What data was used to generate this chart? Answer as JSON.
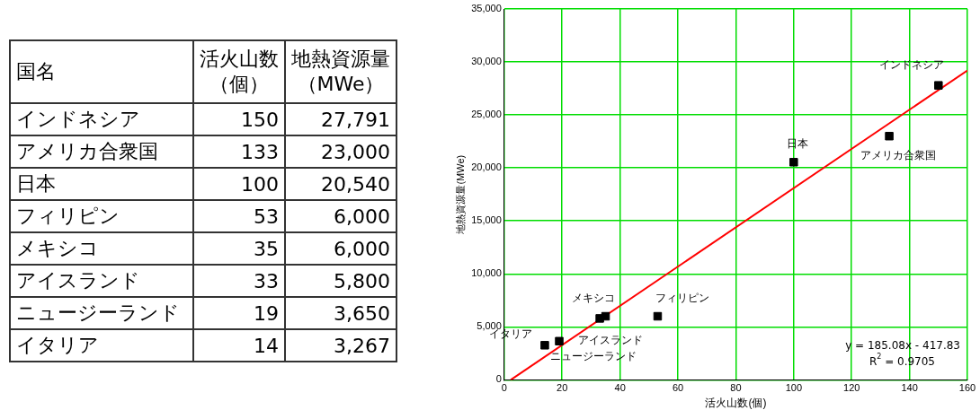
{
  "chart_data": [
    {
      "type": "other",
      "annotations": [
        "国名",
        "活火山数（個）",
        "地熱資源量（MWe）",
        "インドネシア",
        "150",
        "27,791",
        "アメリカ合衆国",
        "133",
        "23,000",
        "日本",
        "100",
        "20,540",
        "フィリピン",
        "53",
        "6,000",
        "メキシコ",
        "35",
        "6,000",
        "アイスランド",
        "33",
        "5,800",
        "ニュージーランド",
        "19",
        "3,650",
        "イタリア",
        "14",
        "3,267"
      ]
    },
    {
      "type": "scatter",
      "xlabel": "活火山数(個)",
      "ylabel": "地熱資源量(MWe)",
      "xlim": [
        0,
        160
      ],
      "xticks": [
        0,
        20,
        40,
        60,
        80,
        100,
        120,
        140,
        160
      ],
      "ylim": [
        0,
        35000
      ],
      "yticks": [
        0,
        {
          "value": 5000,
          "label": "5,000"
        },
        {
          "value": 10000,
          "label": "10,000"
        },
        {
          "value": 15000,
          "label": "15,000"
        },
        {
          "value": 20000,
          "label": "20,000"
        },
        {
          "value": 25000,
          "label": "25,000"
        },
        {
          "value": 30000,
          "label": "30,000"
        },
        {
          "value": 35000,
          "label": "35,000"
        }
      ],
      "grid": true,
      "legend": false,
      "series": [
        {
          "color": "#000000",
          "marker": "square",
          "x": [
            150,
            133,
            100,
            53,
            35,
            33,
            19,
            14
          ],
          "values": [
            27791,
            23000,
            20540,
            6000,
            6000,
            5800,
            3650,
            3267
          ]
        },
        {
          "type": "line",
          "color": "#ff0000",
          "x": [
            2.26,
            160
          ],
          "values": [
            0,
            29200
          ]
        }
      ],
      "annotations": [
        {
          "text": "インドネシア",
          "x": 150,
          "y": 27791
        },
        {
          "text": "アメリカ合衆国",
          "x": 133,
          "y": 23000
        },
        {
          "text": "日本",
          "x": 100,
          "y": 20540
        },
        {
          "text": "フィリピン",
          "x": 53,
          "y": 6000
        },
        {
          "text": "メキシコ",
          "x": 35,
          "y": 6000
        },
        {
          "text": "アイスランド",
          "x": 33,
          "y": 5800
        },
        {
          "text": "ニュージーランド",
          "x": 19,
          "y": 3650
        },
        {
          "text": "イタリア",
          "x": 14,
          "y": 3267
        },
        "y = 185.08x - 417.83",
        "R$^{2}$ = 0.9705"
      ]
    }
  ]
}
